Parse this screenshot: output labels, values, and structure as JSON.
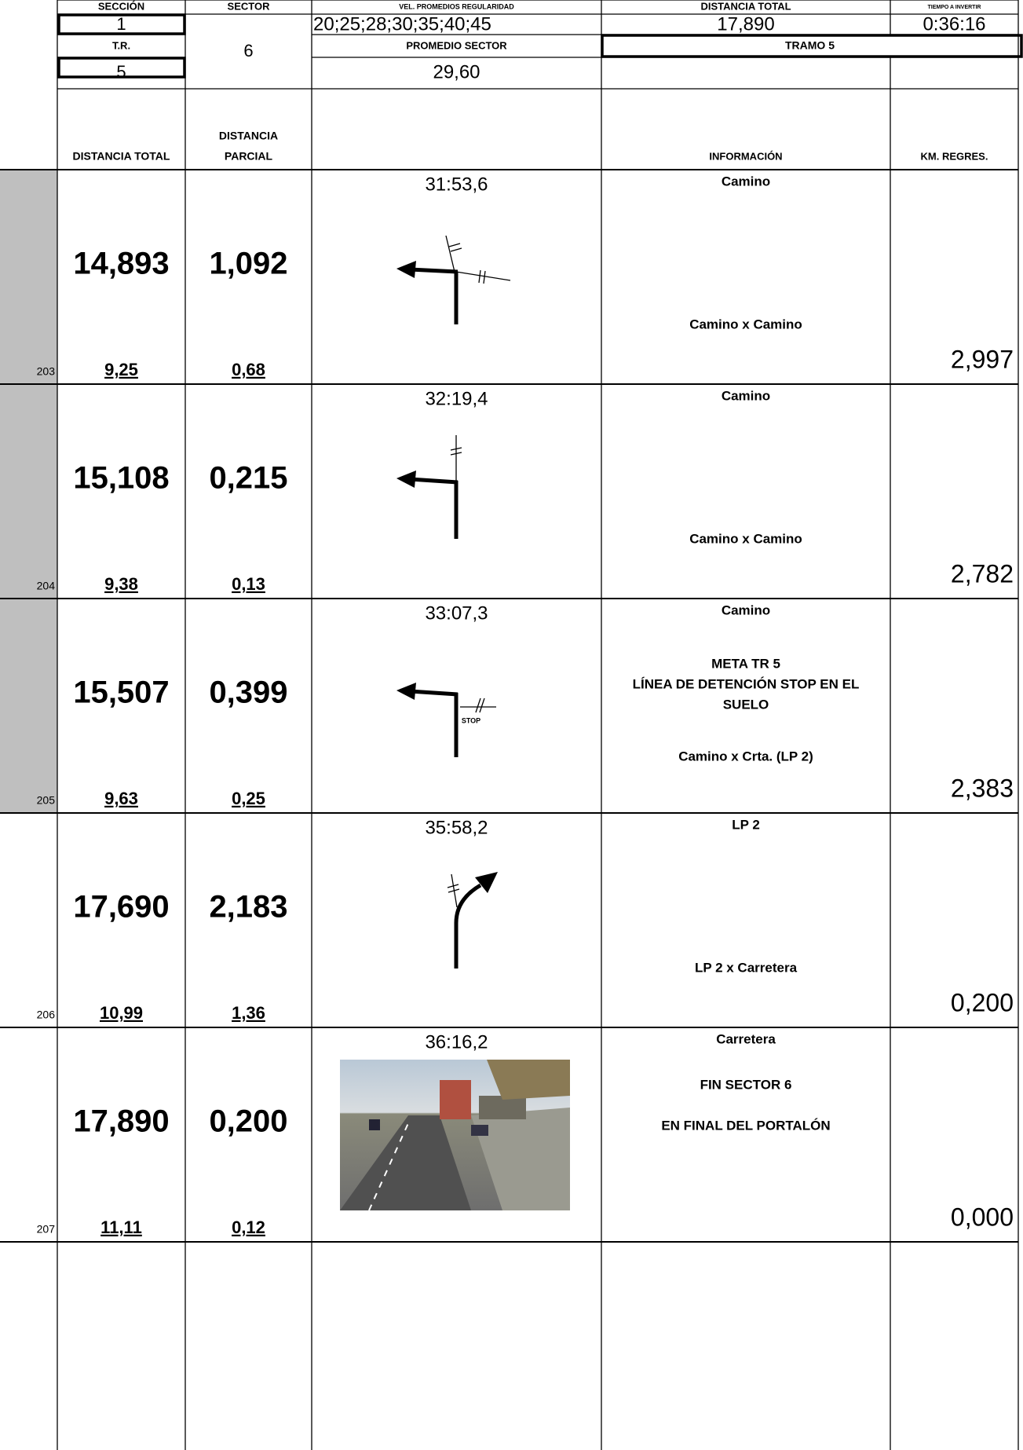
{
  "header": {
    "seccion_label": "SECCIÓN",
    "seccion": "1",
    "sector_label": "SECTOR",
    "sector": "6",
    "vel_label": "VEL. PROMEDIOS REGULARIDAD",
    "vel": "20;25;28;30;35;40;45",
    "distancia_label": "DISTANCIA TOTAL",
    "distancia": "17,890",
    "tiempo_label": "TIEMPO A INVERTIR",
    "tiempo": "0:36:16",
    "tr_label": "T.R.",
    "tr": "5",
    "promedio_label": "PROMEDIO SECTOR",
    "promedio": "29,60",
    "tramo": "TRAMO 5"
  },
  "column_headers": {
    "total": "DISTANCIA TOTAL",
    "partial": [
      "DISTANCIA",
      "PARCIAL"
    ],
    "info": "INFORMACIÓN",
    "km": "KM. REGRES."
  },
  "entries": [
    {
      "number": "203",
      "shaded": true,
      "total": "14,893",
      "partial": "1,092",
      "total_secondary": "9,25",
      "partial_secondary": "0,68",
      "time": "31:53,6",
      "info_top": "Camino",
      "notes": [],
      "info_bottom": "Camino x Camino",
      "km": "2,997"
    },
    {
      "number": "204",
      "shaded": true,
      "total": "15,108",
      "partial": "0,215",
      "total_secondary": "9,38",
      "partial_secondary": "0,13",
      "time": "32:19,4",
      "info_top": "Camino",
      "notes": [],
      "info_bottom": "Camino x Camino",
      "km": "2,782"
    },
    {
      "number": "205",
      "shaded": true,
      "total": "15,507",
      "partial": "0,399",
      "total_secondary": "9,63",
      "partial_secondary": "0,25",
      "time": "33:07,3",
      "info_top": "Camino",
      "notes": [
        "META TR 5",
        "LÍNEA DE DETENCIÓN STOP EN EL",
        "SUELO"
      ],
      "info_bottom": "Camino x Crta. (LP 2)",
      "km": "2,383",
      "sign": "STOP"
    },
    {
      "number": "206",
      "shaded": false,
      "total": "17,690",
      "partial": "2,183",
      "total_secondary": "10,99",
      "partial_secondary": "1,36",
      "time": "35:58,2",
      "info_top": "LP 2",
      "notes": [],
      "info_bottom": "LP 2 x Carretera",
      "km": "0,200"
    },
    {
      "number": "207",
      "shaded": false,
      "total": "17,890",
      "partial": "0,200",
      "total_secondary": "11,11",
      "partial_secondary": "0,12",
      "time": "36:16,2",
      "info_top": "Carretera",
      "notes": [
        "FIN SECTOR 6",
        "EN FINAL DEL PORTALÓN"
      ],
      "km": "0,000"
    }
  ]
}
